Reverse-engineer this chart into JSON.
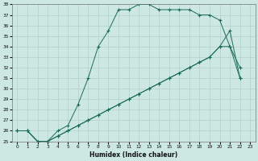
{
  "xlabel": "Humidex (Indice chaleur)",
  "ylabel": "",
  "xlim": [
    -0.5,
    23.5
  ],
  "ylim": [
    25,
    38
  ],
  "xticks": [
    0,
    1,
    2,
    3,
    4,
    5,
    6,
    7,
    8,
    9,
    10,
    11,
    12,
    13,
    14,
    15,
    16,
    17,
    18,
    19,
    20,
    21,
    22,
    23
  ],
  "yticks": [
    25,
    26,
    27,
    28,
    29,
    30,
    31,
    32,
    33,
    34,
    35,
    36,
    37,
    38
  ],
  "background_color": "#cde8e2",
  "grid_color": "#b0d0c8",
  "line_color": "#1a6b5a",
  "curve1_x": [
    0,
    1,
    2,
    3,
    4,
    5,
    6,
    7,
    8,
    9,
    10,
    11,
    12,
    13,
    14,
    15,
    16,
    17,
    18,
    19,
    20,
    21,
    22
  ],
  "curve1_y": [
    26,
    26,
    25,
    25,
    26,
    26.5,
    28.5,
    31,
    34,
    35.5,
    37.5,
    37.5,
    38,
    38,
    37.5,
    37.5,
    37.5,
    37.5,
    37,
    37,
    36.5,
    34,
    32
  ],
  "curve2_x": [
    0,
    1,
    2,
    3,
    4,
    5,
    6,
    7,
    8,
    9,
    10,
    11,
    12,
    13,
    14,
    15,
    16,
    17,
    18,
    19,
    20,
    21,
    22
  ],
  "curve2_y": [
    26,
    26,
    25,
    25,
    25.5,
    26,
    26.5,
    27,
    27.5,
    28,
    28.5,
    29,
    29.5,
    30,
    30.5,
    31,
    31.5,
    32,
    32.5,
    33,
    34,
    35.5,
    31
  ],
  "curve3_x": [
    0,
    1,
    2,
    3,
    4,
    5,
    6,
    7,
    8,
    9,
    10,
    11,
    12,
    13,
    14,
    15,
    16,
    17,
    18,
    19,
    20,
    21,
    22
  ],
  "curve3_y": [
    26,
    26,
    25,
    25,
    25.5,
    26,
    26.5,
    27,
    27.5,
    28,
    28.5,
    29,
    29.5,
    30,
    30.5,
    31,
    31.5,
    32,
    32.5,
    33,
    34,
    34,
    31
  ]
}
